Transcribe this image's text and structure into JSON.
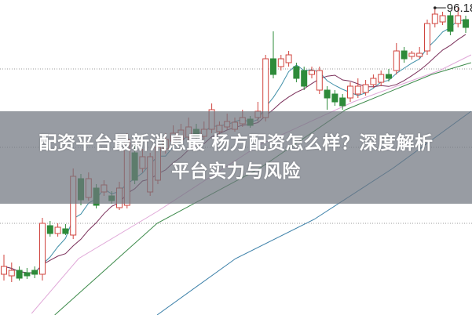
{
  "title_line1": "配资平台最新消息最 杨方配资怎么样？深度解析",
  "title_line2": "平台实力与风险",
  "chart_data": {
    "type": "candlestick",
    "price_label": "96.18",
    "ylim": [
      57.2,
      97.4
    ],
    "grid": {
      "dotted_horizontal": [
        88.6,
        78.6,
        68.9
      ]
    },
    "colors": {
      "up": "#d0453f",
      "down": "#2e8b3a",
      "ma5": "#3f8fa8",
      "ma10": "#7a2f5a",
      "pink": "#e0a8d8",
      "green": "#3c8a4a",
      "blue": "#3a7fa8"
    },
    "candles_ohlc": [
      [
        62.4,
        63.4,
        64.9,
        61.6
      ],
      [
        62.2,
        62.9,
        63.9,
        61.4
      ],
      [
        62.9,
        61.9,
        63.4,
        61.6
      ],
      [
        62.6,
        62.2,
        63.2,
        61.8
      ],
      [
        62.9,
        62.4,
        63.4,
        61.9
      ],
      [
        62.4,
        68.9,
        69.6,
        61.6
      ],
      [
        68.6,
        67.6,
        69.2,
        67.2
      ],
      [
        67.6,
        68.4,
        68.9,
        67.2
      ],
      [
        68.2,
        67.6,
        68.8,
        67.4
      ],
      [
        67.4,
        74.9,
        75.9,
        66.9
      ],
      [
        74.6,
        71.9,
        75.2,
        71.2
      ],
      [
        72.2,
        74.6,
        75.4,
        71.8
      ],
      [
        73.4,
        71.2,
        73.9,
        70.8
      ],
      [
        72.9,
        73.8,
        74.4,
        72.4
      ],
      [
        72.4,
        71.8,
        73.0,
        71.4
      ],
      [
        70.9,
        73.4,
        74.2,
        70.6
      ],
      [
        71.2,
        79.6,
        80.4,
        70.8
      ],
      [
        77.9,
        74.4,
        78.9,
        73.9
      ],
      [
        75.9,
        77.4,
        78.4,
        75.4
      ],
      [
        72.9,
        77.4,
        77.9,
        72.4
      ],
      [
        74.4,
        78.6,
        79.4,
        73.9
      ],
      [
        78.4,
        79.6,
        80.4,
        77.8
      ],
      [
        79.4,
        80.4,
        81.4,
        78.9
      ],
      [
        79.6,
        80.8,
        81.6,
        79.2
      ],
      [
        79.9,
        81.2,
        82.4,
        79.4
      ],
      [
        80.9,
        79.9,
        81.6,
        79.4
      ],
      [
        80.0,
        80.9,
        81.9,
        79.6
      ],
      [
        80.9,
        83.4,
        84.2,
        80.4
      ],
      [
        80.6,
        81.4,
        81.9,
        80.2
      ],
      [
        81.2,
        81.9,
        82.9,
        80.8
      ],
      [
        80.9,
        81.8,
        82.4,
        80.6
      ],
      [
        81.6,
        82.4,
        83.4,
        81.2
      ],
      [
        82.2,
        81.4,
        82.6,
        81.1
      ],
      [
        82.4,
        83.2,
        84.4,
        81.9
      ],
      [
        82.4,
        89.9,
        90.4,
        81.9
      ],
      [
        89.9,
        87.9,
        93.4,
        87.4
      ],
      [
        88.9,
        89.9,
        90.4,
        88.4
      ],
      [
        89.4,
        90.4,
        90.9,
        88.9
      ],
      [
        88.9,
        87.4,
        89.4,
        86.9
      ],
      [
        88.4,
        86.4,
        88.9,
        85.9
      ],
      [
        87.9,
        88.4,
        88.9,
        87.4
      ],
      [
        85.9,
        88.4,
        88.9,
        85.4
      ],
      [
        85.9,
        84.9,
        86.4,
        83.4
      ],
      [
        85.4,
        84.4,
        85.9,
        83.9
      ],
      [
        84.9,
        83.9,
        85.4,
        83.4
      ],
      [
        84.9,
        86.4,
        86.9,
        84.4
      ],
      [
        85.4,
        86.4,
        87.4,
        84.9
      ],
      [
        85.6,
        86.6,
        87.2,
        85.2
      ],
      [
        86.6,
        87.4,
        87.9,
        86.2
      ],
      [
        86.9,
        87.9,
        88.4,
        86.4
      ],
      [
        87.9,
        87.4,
        88.6,
        87.0
      ],
      [
        88.4,
        90.9,
        91.9,
        87.9
      ],
      [
        90.9,
        89.9,
        91.4,
        89.4
      ],
      [
        90.2,
        90.6,
        90.9,
        89.8
      ],
      [
        90.2,
        90.6,
        91.4,
        89.9
      ],
      [
        90.9,
        94.4,
        94.9,
        90.4
      ],
      [
        94.4,
        95.6,
        96.4,
        93.9
      ],
      [
        94.6,
        95.4,
        95.9,
        94.2
      ],
      [
        95.4,
        93.4,
        95.9,
        92.9
      ],
      [
        94.4,
        95.4,
        96.4,
        93.9
      ],
      [
        94.9,
        93.9,
        95.4,
        93.2
      ]
    ],
    "moving_averages": [
      5,
      10
    ],
    "long_lines": [
      {
        "color_key": "pink",
        "points": [
          [
            3.6,
            57.4
          ],
          [
            9.7,
            64.4
          ],
          [
            19.9,
            70.4
          ],
          [
            33.2,
            78.9
          ],
          [
            45.4,
            84.4
          ],
          [
            56.6,
            88.4
          ],
          [
            60.7,
            90.4
          ]
        ]
      },
      {
        "color_key": "green",
        "points": [
          [
            6.6,
            57.2
          ],
          [
            19.9,
            68.9
          ],
          [
            33.2,
            75.9
          ],
          [
            44.4,
            83.4
          ],
          [
            55.6,
            87.9
          ],
          [
            60.7,
            89.4
          ]
        ]
      },
      {
        "color_key": "blue",
        "points": [
          [
            19.9,
            57.2
          ],
          [
            30.1,
            64.4
          ],
          [
            40.3,
            69.4
          ],
          [
            50.5,
            75.9
          ],
          [
            60.7,
            83.2
          ]
        ]
      }
    ],
    "annotated_candle_index": 56
  }
}
